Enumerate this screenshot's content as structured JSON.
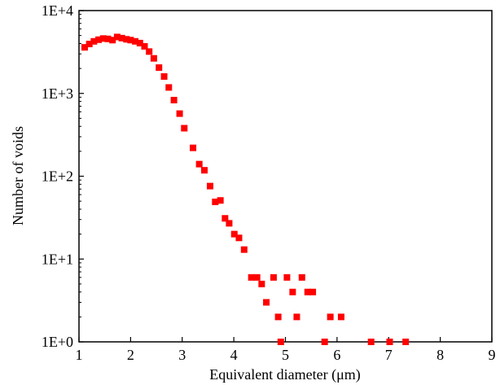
{
  "chart_data": {
    "type": "scatter",
    "title": "",
    "xlabel": "Equivalent diameter  (μm)",
    "ylabel": "Number of voids",
    "xlim": [
      1,
      9
    ],
    "ylim": [
      1,
      10000
    ],
    "yscale": "log",
    "x_ticks": [
      1,
      2,
      3,
      4,
      5,
      6,
      7,
      8,
      9
    ],
    "x_tick_labels": [
      "1",
      "2",
      "3",
      "4",
      "5",
      "6",
      "7",
      "8",
      "9"
    ],
    "y_ticks": [
      1,
      10,
      100,
      1000,
      10000
    ],
    "y_tick_labels": [
      "1E+0",
      "1E+1",
      "1E+2",
      "1E+3",
      "1E+4"
    ],
    "marker_color": "#ff0000",
    "grid": false,
    "legend": null,
    "series": [
      {
        "name": "voids",
        "points": [
          [
            1.11,
            3600
          ],
          [
            1.2,
            3950
          ],
          [
            1.29,
            4250
          ],
          [
            1.38,
            4450
          ],
          [
            1.47,
            4600
          ],
          [
            1.56,
            4550
          ],
          [
            1.65,
            4400
          ],
          [
            1.74,
            4800
          ],
          [
            1.83,
            4650
          ],
          [
            1.92,
            4500
          ],
          [
            2.0,
            4400
          ],
          [
            2.09,
            4250
          ],
          [
            2.18,
            4050
          ],
          [
            2.27,
            3700
          ],
          [
            2.36,
            3200
          ],
          [
            2.45,
            2650
          ],
          [
            2.55,
            2050
          ],
          [
            2.65,
            1600
          ],
          [
            2.74,
            1180
          ],
          [
            2.84,
            830
          ],
          [
            2.95,
            570
          ],
          [
            3.04,
            380
          ],
          [
            3.21,
            220
          ],
          [
            3.33,
            140
          ],
          [
            3.43,
            118
          ],
          [
            3.54,
            76
          ],
          [
            3.64,
            49
          ],
          [
            3.74,
            51
          ],
          [
            3.83,
            31
          ],
          [
            3.91,
            27
          ],
          [
            4.01,
            20
          ],
          [
            4.1,
            18
          ],
          [
            4.2,
            13
          ],
          [
            4.34,
            6
          ],
          [
            4.45,
            6
          ],
          [
            4.54,
            5
          ],
          [
            4.63,
            3
          ],
          [
            4.77,
            6
          ],
          [
            4.86,
            2
          ],
          [
            4.91,
            1
          ],
          [
            5.03,
            6
          ],
          [
            5.14,
            4
          ],
          [
            5.22,
            2
          ],
          [
            5.32,
            6
          ],
          [
            5.43,
            4
          ],
          [
            5.53,
            4
          ],
          [
            5.76,
            1
          ],
          [
            5.87,
            2
          ],
          [
            6.08,
            2
          ],
          [
            6.66,
            1
          ],
          [
            7.02,
            1
          ],
          [
            7.33,
            1
          ]
        ]
      }
    ]
  }
}
